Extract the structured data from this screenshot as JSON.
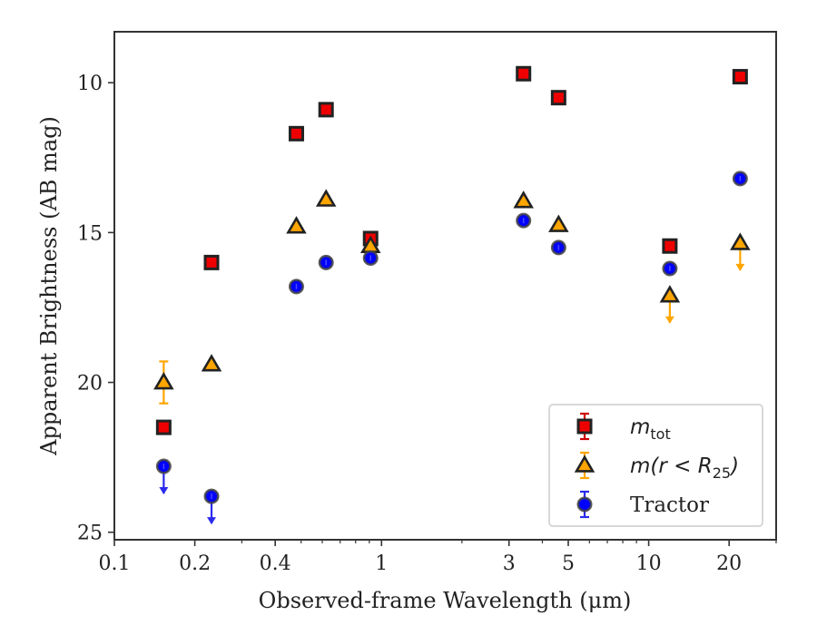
{
  "chart_data": {
    "type": "scatter",
    "xscale": "log",
    "yaxis_inverted": true,
    "xlim": [
      0.1,
      30
    ],
    "ylim": [
      25.25,
      8.3
    ],
    "xlabel": "Observed-frame Wavelength (μm)",
    "ylabel": "Apparent Brightness (AB mag)",
    "xticks": [
      {
        "value": 0.1,
        "label": "0.1"
      },
      {
        "value": 0.2,
        "label": "0.2"
      },
      {
        "value": 0.4,
        "label": "0.4"
      },
      {
        "value": 1,
        "label": "1"
      },
      {
        "value": 3,
        "label": "3"
      },
      {
        "value": 5,
        "label": "5"
      },
      {
        "value": 10,
        "label": "10"
      },
      {
        "value": 20,
        "label": "20"
      }
    ],
    "yticks": [
      {
        "value": 10,
        "label": "10"
      },
      {
        "value": 15,
        "label": "15"
      },
      {
        "value": 20,
        "label": "20"
      },
      {
        "value": 25,
        "label": "25"
      }
    ],
    "legend_position": "bottom-right",
    "series": [
      {
        "name_base": "m",
        "name_sub": "tot",
        "marker": "square",
        "fill": "#ee0000",
        "errcolor": "#cc0000",
        "points": [
          {
            "x": 0.153,
            "y": 21.5
          },
          {
            "x": 0.231,
            "y": 16.0
          },
          {
            "x": 0.48,
            "y": 11.7
          },
          {
            "x": 0.62,
            "y": 10.9
          },
          {
            "x": 0.91,
            "y": 15.2
          },
          {
            "x": 3.4,
            "y": 9.7
          },
          {
            "x": 4.6,
            "y": 10.5
          },
          {
            "x": 12.0,
            "y": 15.45
          },
          {
            "x": 22.0,
            "y": 9.8
          }
        ]
      },
      {
        "name_base": "m(r < R",
        "name_sub": "25",
        "name_tail": ")",
        "marker": "triangle",
        "fill": "#ffa500",
        "errcolor": "#ffa500",
        "points": [
          {
            "x": 0.153,
            "y": 20.0,
            "err": 0.7
          },
          {
            "x": 0.231,
            "y": 19.4
          },
          {
            "x": 0.48,
            "y": 14.8
          },
          {
            "x": 0.62,
            "y": 13.9
          },
          {
            "x": 0.91,
            "y": 15.45
          },
          {
            "x": 3.4,
            "y": 13.95
          },
          {
            "x": 4.6,
            "y": 14.75
          },
          {
            "x": 12.0,
            "y": 17.1,
            "upper_limit": true
          },
          {
            "x": 22.0,
            "y": 15.35,
            "upper_limit": true
          }
        ]
      },
      {
        "name": "Tractor",
        "marker": "circle",
        "fill": "#0000ff",
        "errcolor": "#2a2aee",
        "points": [
          {
            "x": 0.153,
            "y": 22.8,
            "upper_limit": true
          },
          {
            "x": 0.231,
            "y": 23.8,
            "upper_limit": true
          },
          {
            "x": 0.48,
            "y": 16.8
          },
          {
            "x": 0.62,
            "y": 16.0
          },
          {
            "x": 0.91,
            "y": 15.85
          },
          {
            "x": 3.4,
            "y": 14.6
          },
          {
            "x": 4.6,
            "y": 15.5
          },
          {
            "x": 12.0,
            "y": 16.2
          },
          {
            "x": 22.0,
            "y": 13.2
          }
        ]
      }
    ]
  }
}
